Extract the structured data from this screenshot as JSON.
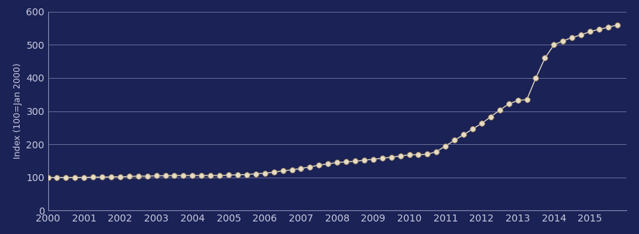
{
  "chart_data": {
    "type": "line",
    "y_label": "Index (100=Jan 2000)",
    "x": [
      2000.0,
      2000.25,
      2000.5,
      2000.75,
      2001.0,
      2001.25,
      2001.5,
      2001.75,
      2002.0,
      2002.25,
      2002.5,
      2002.75,
      2003.0,
      2003.25,
      2003.5,
      2003.75,
      2004.0,
      2004.25,
      2004.5,
      2004.75,
      2005.0,
      2005.25,
      2005.5,
      2005.75,
      2006.0,
      2006.25,
      2006.5,
      2006.75,
      2007.0,
      2007.25,
      2007.5,
      2007.75,
      2008.0,
      2008.25,
      2008.5,
      2008.75,
      2009.0,
      2009.25,
      2009.5,
      2009.75,
      2010.0,
      2010.25,
      2010.5,
      2010.75,
      2011.0,
      2011.25,
      2011.5,
      2011.75,
      2012.0,
      2012.25,
      2012.5,
      2012.75,
      2013.0,
      2013.25,
      2013.5,
      2013.75,
      2014.0,
      2014.25,
      2014.5,
      2014.75,
      2015.0,
      2015.25,
      2015.5,
      2015.75
    ],
    "values": [
      100,
      100,
      100,
      100,
      100,
      101,
      101,
      102,
      102,
      103,
      104,
      104,
      105,
      105,
      106,
      106,
      106,
      106,
      106,
      106,
      107,
      108,
      109,
      111,
      113,
      116,
      120,
      123,
      127,
      132,
      137,
      141,
      145,
      147,
      149,
      152,
      155,
      158,
      161,
      165,
      168,
      169,
      170,
      178,
      195,
      212,
      229,
      246,
      263,
      283,
      303,
      322,
      332,
      335,
      400,
      460,
      500,
      512,
      522,
      530,
      540,
      547,
      553,
      560
    ],
    "color": "#e6dcc4",
    "marker": "o",
    "line_style": "solid",
    "xlim": [
      2000,
      2016
    ],
    "xticks": [
      2000,
      2001,
      2002,
      2003,
      2004,
      2005,
      2006,
      2007,
      2008,
      2009,
      2010,
      2011,
      2012,
      2013,
      2014,
      2015
    ],
    "ylim": [
      0,
      600
    ],
    "yticks": [
      0,
      100,
      200,
      300,
      400,
      500,
      600
    ],
    "grid": true
  }
}
